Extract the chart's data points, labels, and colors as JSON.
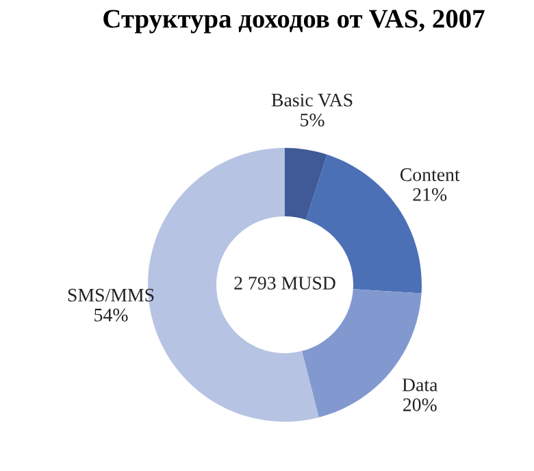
{
  "chart_data": {
    "type": "donut",
    "title": "Структура доходов от VAS, 2007",
    "categories": [
      "Basic VAS",
      "Content",
      "Data",
      "SMS/MMS"
    ],
    "values": [
      5,
      21,
      20,
      54
    ],
    "value_labels": [
      "5%",
      "21%",
      "20%",
      "54%"
    ],
    "colors": [
      "#3f5a97",
      "#4b70b6",
      "#8299d0",
      "#b7c3e3"
    ],
    "annotations": [
      {
        "text": "2 793 MUSD"
      }
    ],
    "legend": false
  }
}
